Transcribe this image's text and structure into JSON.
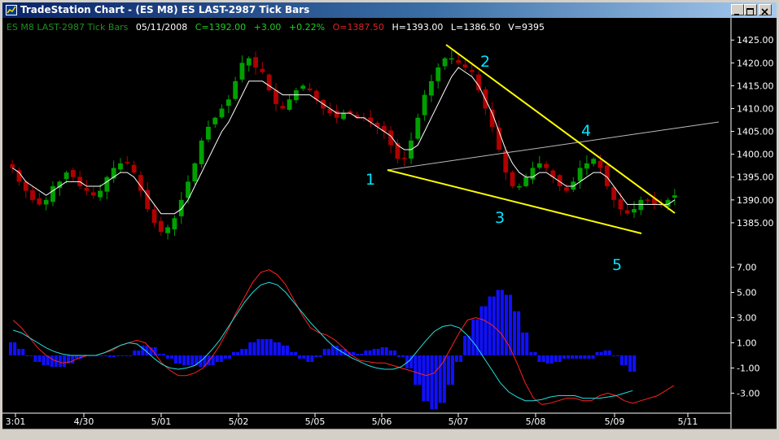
{
  "window": {
    "title": "TradeStation Chart - (ES M8) ES LAST-2987 Tick Bars",
    "icon": "tradestation-icon",
    "buttons": [
      "minimize",
      "maximize",
      "close"
    ]
  },
  "info_bar": {
    "symbol": "ES M8 LAST-2987 Tick Bars",
    "date": "05/11/2008",
    "close": "C=1392.00",
    "change": "+3.00",
    "percent": "+0.22%",
    "open": "O=1387.50",
    "high": "H=1393.00",
    "low": "L=1386.50",
    "volume": "V=9395"
  },
  "colors": {
    "background": "#000000",
    "up_bar": "#00a000",
    "down_bar": "#b00000",
    "moving_average": "#ffffff",
    "trendline": "#ffff00",
    "labels": "#00e5ff",
    "macd": "#ff2020",
    "signal": "#20e0e0",
    "histogram": "#1010ff"
  },
  "chart_data": [
    {
      "type": "candlestick",
      "panel": "price",
      "ylim": [
        1380,
        1427
      ],
      "y_ticks": [
        "1425.00",
        "1420.00",
        "1415.00",
        "1410.00",
        "1405.00",
        "1400.00",
        "1395.00",
        "1390.00",
        "1385.00"
      ],
      "x_ticks": [
        "3:01",
        "4/30",
        "5/01",
        "5/02",
        "5/05",
        "5/06",
        "5/07",
        "5/08",
        "5/09",
        "5/11"
      ],
      "close_series": [
        1397,
        1394,
        1392,
        1390,
        1389,
        1390,
        1393,
        1394,
        1396,
        1395,
        1393,
        1392,
        1391,
        1392,
        1395,
        1397,
        1398,
        1398,
        1396,
        1392,
        1388,
        1385,
        1383,
        1384,
        1386,
        1390,
        1394,
        1398,
        1403,
        1406,
        1408,
        1410,
        1412,
        1416,
        1420,
        1421,
        1419,
        1418,
        1414,
        1411,
        1410,
        1412,
        1414,
        1415,
        1414,
        1412,
        1410,
        1409,
        1408,
        1409,
        1409,
        1408,
        1408,
        1407,
        1406,
        1405,
        1402,
        1399,
        1399,
        1403,
        1408,
        1413,
        1416,
        1419,
        1421,
        1421,
        1420,
        1419,
        1418,
        1414,
        1410,
        1406,
        1401,
        1396,
        1393,
        1393,
        1395,
        1397,
        1398,
        1397,
        1395,
        1393,
        1392,
        1394,
        1397,
        1398,
        1399,
        1397,
        1393,
        1390,
        1388,
        1387,
        1388,
        1390,
        1390,
        1389,
        1389,
        1390,
        1391
      ],
      "moving_average": [
        1397,
        1396,
        1394,
        1393,
        1392,
        1391,
        1392,
        1393,
        1394,
        1394,
        1394,
        1393,
        1393,
        1393,
        1394,
        1395,
        1396,
        1396,
        1395,
        1393,
        1391,
        1389,
        1387,
        1387,
        1387,
        1388,
        1390,
        1393,
        1396,
        1399,
        1402,
        1405,
        1407,
        1410,
        1413,
        1416,
        1416,
        1416,
        1415,
        1414,
        1413,
        1413,
        1413,
        1413,
        1413,
        1412,
        1411,
        1410,
        1409,
        1409,
        1409,
        1408,
        1408,
        1407,
        1406,
        1405,
        1404,
        1402,
        1401,
        1401,
        1402,
        1405,
        1408,
        1411,
        1414,
        1417,
        1419,
        1418,
        1417,
        1415,
        1412,
        1409,
        1405,
        1401,
        1398,
        1396,
        1395,
        1395,
        1396,
        1396,
        1395,
        1394,
        1393,
        1393,
        1394,
        1395,
        1396,
        1396,
        1395,
        1393,
        1391,
        1389,
        1389,
        1389,
        1389,
        1389,
        1389,
        1389,
        1390
      ]
    },
    {
      "type": "line",
      "panel": "macd",
      "ylim": [
        -4.2,
        8.2
      ],
      "y_ticks": [
        "7.00",
        "5.00",
        "3.00",
        "1.00",
        "-1.00",
        "-3.00"
      ],
      "series": [
        {
          "id": "macd",
          "values": [
            2.8,
            2.2,
            1.4,
            0.6,
            0.0,
            -0.4,
            -0.6,
            -0.5,
            -0.2,
            0.0,
            0.0,
            0.2,
            0.4,
            0.8,
            1.0,
            1.2,
            1.0,
            0.3,
            -0.6,
            -1.2,
            -1.6,
            -1.6,
            -1.4,
            -1.0,
            -0.2,
            0.8,
            2.0,
            3.4,
            4.6,
            5.8,
            6.6,
            6.8,
            6.4,
            5.6,
            4.4,
            3.2,
            2.2,
            1.8,
            1.6,
            1.2,
            0.6,
            0.0,
            -0.4,
            -0.5,
            -0.6,
            -0.6,
            -0.8,
            -1.0,
            -1.2,
            -1.4,
            -1.6,
            -1.4,
            -0.6,
            0.6,
            1.8,
            2.8,
            3.0,
            2.8,
            2.4,
            1.8,
            0.8,
            -0.6,
            -2.2,
            -3.4,
            -3.9,
            -3.8,
            -3.6,
            -3.4,
            -3.4,
            -3.6,
            -3.6,
            -3.2,
            -3.0,
            -3.2,
            -3.6,
            -3.8,
            -3.6,
            -3.4,
            -3.2,
            -2.8,
            -2.4
          ]
        },
        {
          "id": "signal",
          "values": [
            2.0,
            1.8,
            1.4,
            1.0,
            0.6,
            0.3,
            0.1,
            0.0,
            0.0,
            0.0,
            0.0,
            0.2,
            0.5,
            0.8,
            1.0,
            0.9,
            0.4,
            -0.2,
            -0.7,
            -1.0,
            -1.1,
            -1.0,
            -0.8,
            -0.3,
            0.4,
            1.2,
            2.2,
            3.2,
            4.2,
            5.0,
            5.6,
            5.8,
            5.6,
            5.0,
            4.2,
            3.4,
            2.6,
            1.9,
            1.2,
            0.6,
            0.2,
            -0.2,
            -0.5,
            -0.8,
            -1.0,
            -1.1,
            -1.1,
            -0.9,
            -0.4,
            0.4,
            1.2,
            1.9,
            2.3,
            2.4,
            2.2,
            1.6,
            0.8,
            -0.2,
            -1.2,
            -2.2,
            -2.9,
            -3.3,
            -3.6,
            -3.6,
            -3.5,
            -3.3,
            -3.2,
            -3.2,
            -3.2,
            -3.4,
            -3.4,
            -3.4,
            -3.3,
            -3.2,
            -3.0,
            -2.8
          ]
        }
      ]
    }
  ],
  "annotations": {
    "p1": "1",
    "p2": "2",
    "p3": "3",
    "p4": "4",
    "p5": "5"
  }
}
